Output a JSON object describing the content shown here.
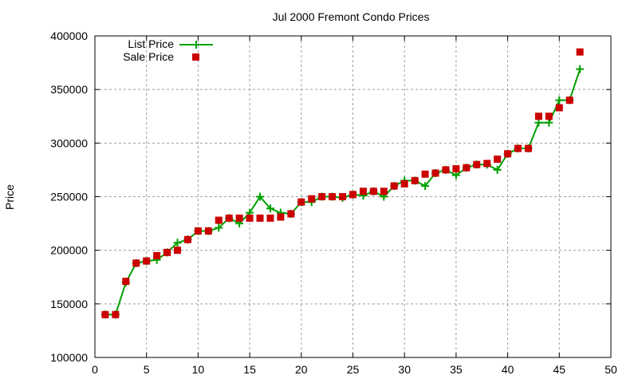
{
  "chart_data": {
    "type": "line",
    "title": "Jul 2000 Fremont Condo Prices",
    "xlabel": "",
    "ylabel": "Price",
    "xlim": [
      0,
      50
    ],
    "ylim": [
      100000,
      400000
    ],
    "xticks": [
      0,
      5,
      10,
      15,
      20,
      25,
      30,
      35,
      40,
      45,
      50
    ],
    "yticks": [
      100000,
      150000,
      200000,
      250000,
      300000,
      350000,
      400000
    ],
    "grid": true,
    "legend_position": "top-left",
    "x": [
      1,
      2,
      3,
      4,
      5,
      6,
      7,
      8,
      9,
      10,
      11,
      12,
      13,
      14,
      15,
      16,
      17,
      18,
      19,
      20,
      21,
      22,
      23,
      24,
      25,
      26,
      27,
      28,
      29,
      30,
      31,
      32,
      33,
      34,
      35,
      36,
      37,
      38,
      39,
      40,
      41,
      42,
      43,
      44,
      45,
      46,
      47
    ],
    "series": [
      {
        "name": "List Price",
        "style": "linespoints",
        "color": "#00a000",
        "values": [
          140000,
          140000,
          170000,
          188000,
          190000,
          191000,
          198000,
          207000,
          210000,
          218000,
          218000,
          221000,
          230000,
          225000,
          235000,
          250000,
          239000,
          235000,
          234000,
          245000,
          245000,
          250000,
          250000,
          249000,
          252000,
          251000,
          255000,
          250000,
          260000,
          265000,
          265000,
          260000,
          272000,
          275000,
          270000,
          277000,
          280000,
          280000,
          275000,
          290000,
          295000,
          295000,
          319000,
          319000,
          340000,
          340000,
          369000
        ]
      },
      {
        "name": "Sale Price",
        "style": "points",
        "color": "#cc0000",
        "values": [
          140000,
          140000,
          171000,
          188000,
          190000,
          195000,
          198000,
          200000,
          210000,
          218000,
          218000,
          228000,
          230000,
          230000,
          230000,
          230000,
          230000,
          231000,
          234000,
          245000,
          248000,
          250000,
          250000,
          250000,
          252000,
          255000,
          255000,
          255000,
          260000,
          262000,
          265000,
          271000,
          272000,
          275000,
          276000,
          277000,
          280000,
          281000,
          285000,
          290000,
          295000,
          295000,
          325000,
          325000,
          333000,
          340000,
          385000
        ]
      }
    ]
  }
}
